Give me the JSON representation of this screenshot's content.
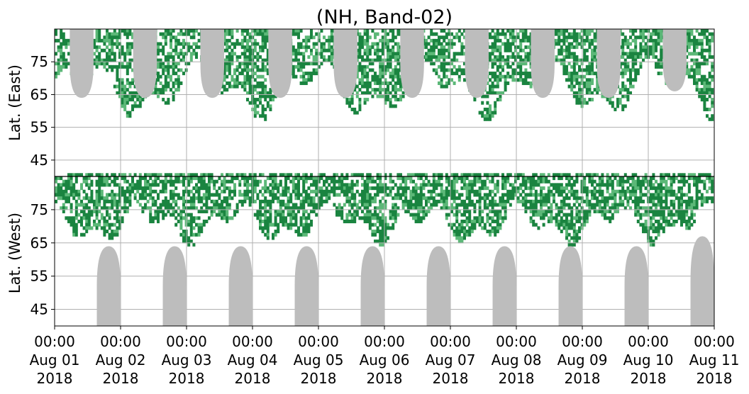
{
  "chart_data": {
    "type": "heatmap",
    "title": "(NH, Band-02)",
    "grid": true,
    "panels": [
      {
        "name": "east",
        "ylabel": "Lat. (East)",
        "ylim": [
          40,
          85
        ],
        "yticks": [
          45,
          55,
          65,
          75
        ],
        "ytick_labels": [
          "45",
          "55",
          "65",
          "75"
        ]
      },
      {
        "name": "west",
        "ylabel": "Lat. (West)",
        "ylim": [
          85,
          40
        ],
        "yticks": [
          75,
          65,
          55,
          45
        ],
        "ytick_labels": [
          "75",
          "65",
          "55",
          "45"
        ]
      }
    ],
    "x": {
      "start": "2018-08-01T00:00",
      "end": "2018-08-11T00:00",
      "ticks": [
        {
          "time": "00:00",
          "date": "Aug 01",
          "year": "2018"
        },
        {
          "time": "00:00",
          "date": "Aug 02",
          "year": "2018"
        },
        {
          "time": "00:00",
          "date": "Aug 03",
          "year": "2018"
        },
        {
          "time": "00:00",
          "date": "Aug 04",
          "year": "2018"
        },
        {
          "time": "00:00",
          "date": "Aug 05",
          "year": "2018"
        },
        {
          "time": "00:00",
          "date": "Aug 06",
          "year": "2018"
        },
        {
          "time": "00:00",
          "date": "Aug 07",
          "year": "2018"
        },
        {
          "time": "00:00",
          "date": "Aug 08",
          "year": "2018"
        },
        {
          "time": "00:00",
          "date": "Aug 09",
          "year": "2018"
        },
        {
          "time": "00:00",
          "date": "Aug 10",
          "year": "2018"
        },
        {
          "time": "00:00",
          "date": "Aug 11",
          "year": "2018"
        }
      ]
    },
    "colors": {
      "strong": "#1a8440",
      "weak": "#5cb878",
      "gap": "#bdbdbd",
      "divider": "#000000"
    },
    "gap_bands": [
      {
        "panel": "east",
        "center_day": 0.41,
        "lat_min": 64,
        "lat_max": 85
      },
      {
        "panel": "east",
        "center_day": 1.37,
        "lat_min": 64,
        "lat_max": 85
      },
      {
        "panel": "east",
        "center_day": 2.39,
        "lat_min": 64,
        "lat_max": 85
      },
      {
        "panel": "east",
        "center_day": 3.42,
        "lat_min": 64,
        "lat_max": 85
      },
      {
        "panel": "east",
        "center_day": 4.41,
        "lat_min": 64,
        "lat_max": 85
      },
      {
        "panel": "east",
        "center_day": 5.42,
        "lat_min": 64,
        "lat_max": 85
      },
      {
        "panel": "east",
        "center_day": 6.4,
        "lat_min": 64,
        "lat_max": 85
      },
      {
        "panel": "east",
        "center_day": 7.4,
        "lat_min": 64,
        "lat_max": 85
      },
      {
        "panel": "east",
        "center_day": 8.4,
        "lat_min": 64,
        "lat_max": 85
      },
      {
        "panel": "east",
        "center_day": 9.4,
        "lat_min": 66,
        "lat_max": 85
      },
      {
        "panel": "west",
        "center_day": 0.82,
        "lat_min": 64,
        "lat_max": 85
      },
      {
        "panel": "west",
        "center_day": 1.82,
        "lat_min": 64,
        "lat_max": 85
      },
      {
        "panel": "west",
        "center_day": 2.82,
        "lat_min": 64,
        "lat_max": 85
      },
      {
        "panel": "west",
        "center_day": 3.82,
        "lat_min": 64,
        "lat_max": 85
      },
      {
        "panel": "west",
        "center_day": 4.82,
        "lat_min": 64,
        "lat_max": 85
      },
      {
        "panel": "west",
        "center_day": 5.82,
        "lat_min": 64,
        "lat_max": 85
      },
      {
        "panel": "west",
        "center_day": 6.82,
        "lat_min": 64,
        "lat_max": 85
      },
      {
        "panel": "west",
        "center_day": 7.82,
        "lat_min": 64,
        "lat_max": 85
      },
      {
        "panel": "west",
        "center_day": 8.82,
        "lat_min": 64,
        "lat_max": 85
      },
      {
        "panel": "west",
        "center_day": 9.82,
        "lat_min": 67,
        "lat_max": 85
      }
    ]
  }
}
